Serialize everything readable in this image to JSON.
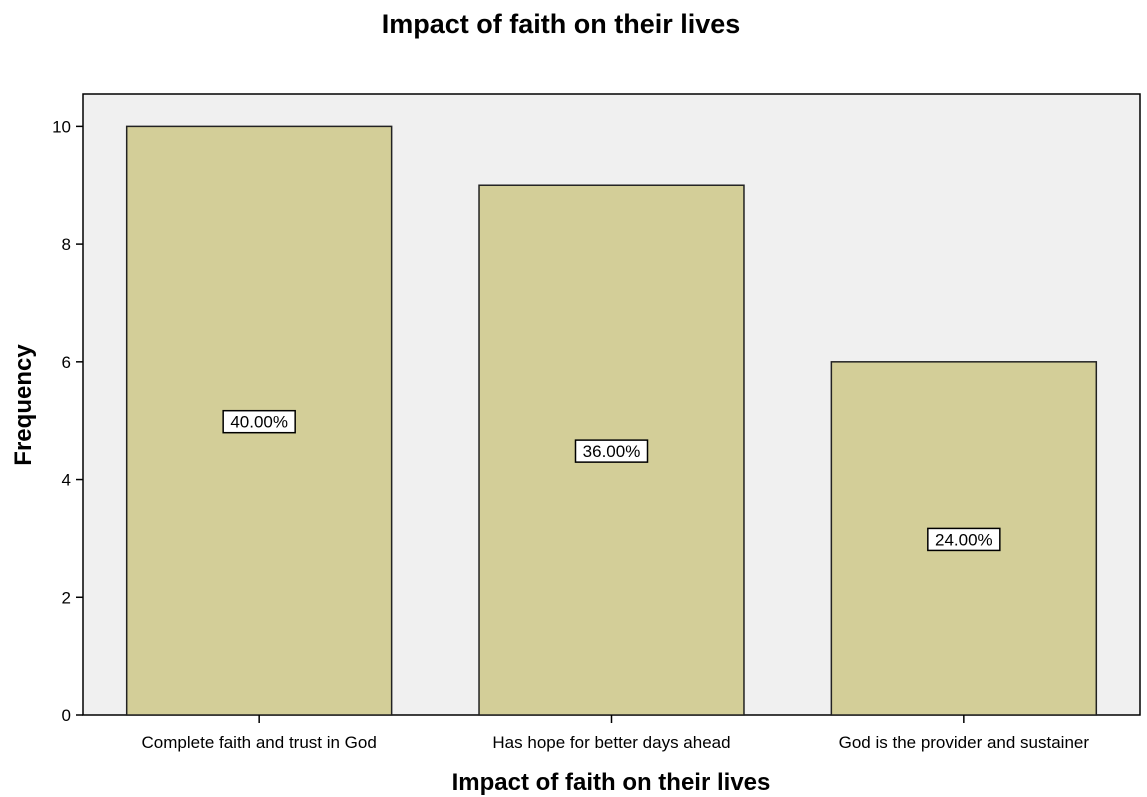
{
  "chart_data": {
    "type": "bar",
    "title": "Impact of faith on their lives",
    "xlabel": "Impact of faith on their lives",
    "ylabel": "Frequency",
    "categories": [
      "Complete faith and trust in God",
      "Has hope for better days ahead",
      "God is the provider and sustainer"
    ],
    "values": [
      10,
      9,
      6
    ],
    "data_labels": [
      "40.00%",
      "36.00%",
      "24.00%"
    ],
    "y_ticks": [
      0,
      2,
      4,
      6,
      8,
      10
    ],
    "ylim": [
      0,
      10.55
    ],
    "grid": false,
    "legend": "none"
  },
  "colors": {
    "plot_background": "#f0f0f0",
    "bar_fill": "#d3ce98",
    "bar_stroke": "#222222",
    "label_box": "#ffffff"
  }
}
